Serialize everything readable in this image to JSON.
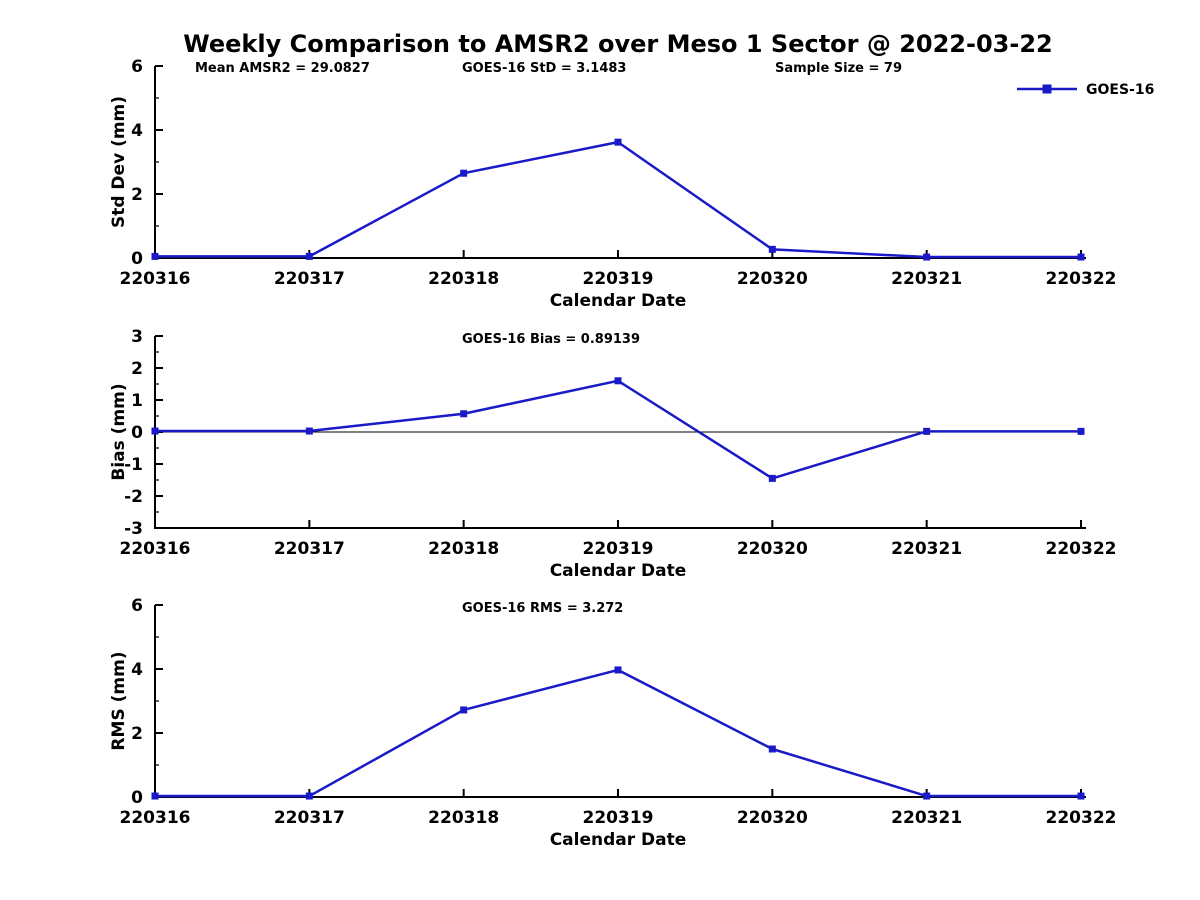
{
  "figure": {
    "title": "Weekly Comparison to AMSR2 over Meso 1 Sector @ 2022-03-22",
    "background": "#ffffff",
    "series_color": "#1a1ac8",
    "axis_color": "#000000",
    "legend": {
      "label": "GOES-16",
      "marker": "filled-square",
      "line_color": "#1a1ac8"
    }
  },
  "chart_data": [
    {
      "id": "stddev",
      "type": "line",
      "title": "",
      "xlabel": "Calendar Date",
      "ylabel": "Std Dev (mm)",
      "ylim": [
        0,
        6
      ],
      "yticks": [
        0,
        2,
        4,
        6
      ],
      "minor_step": 1,
      "zero_line": false,
      "grid": false,
      "legend_position": "top-right",
      "categories": [
        "220316",
        "220317",
        "220318",
        "220319",
        "220320",
        "220321",
        "220322"
      ],
      "series": [
        {
          "name": "GOES-16",
          "values": [
            0.05,
            0.05,
            2.65,
            3.62,
            0.27,
            0.03,
            0.03
          ]
        }
      ],
      "annotations": [
        {
          "text": "Mean AMSR2 = 29.0827"
        },
        {
          "text": "GOES-16 StD = 3.1483"
        },
        {
          "text": "Sample Size = 79"
        }
      ]
    },
    {
      "id": "bias",
      "type": "line",
      "title": "",
      "xlabel": "Calendar Date",
      "ylabel": "Bias (mm)",
      "ylim": [
        -3,
        3
      ],
      "yticks": [
        -3,
        -2,
        -1,
        0,
        1,
        2,
        3
      ],
      "minor_step": 0.5,
      "zero_line": true,
      "grid": false,
      "legend_position": "none",
      "categories": [
        "220316",
        "220317",
        "220318",
        "220319",
        "220320",
        "220321",
        "220322"
      ],
      "series": [
        {
          "name": "GOES-16",
          "values": [
            0.03,
            0.03,
            0.57,
            1.6,
            -1.45,
            0.02,
            0.02
          ]
        }
      ],
      "annotations": [
        {
          "text": "GOES-16 Bias  = 0.89139"
        }
      ]
    },
    {
      "id": "rms",
      "type": "line",
      "title": "",
      "xlabel": "Calendar Date",
      "ylabel": "RMS (mm)",
      "ylim": [
        0,
        6
      ],
      "yticks": [
        0,
        2,
        4,
        6
      ],
      "minor_step": 1,
      "zero_line": false,
      "grid": false,
      "legend_position": "none",
      "categories": [
        "220316",
        "220317",
        "220318",
        "220319",
        "220320",
        "220321",
        "220322"
      ],
      "series": [
        {
          "name": "GOES-16",
          "values": [
            0.03,
            0.03,
            2.72,
            3.97,
            1.5,
            0.03,
            0.03
          ]
        }
      ],
      "annotations": [
        {
          "text": "GOES-16 RMS = 3.272"
        }
      ]
    }
  ]
}
